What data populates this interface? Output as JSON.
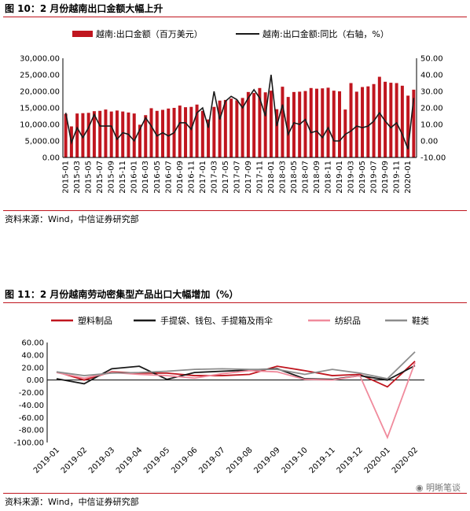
{
  "figures": [
    {
      "title": "图 10：2 月份越南出口金额大幅上升",
      "source": "资料来源：Wind，中信证券研究部"
    },
    {
      "title": "图 11：2 月份越南劳动密集型产品出口大幅增加（%）",
      "source": "资料来源：Wind，中信证券研究部"
    }
  ],
  "watermark": "明晰笔谈",
  "chart_data": [
    {
      "type": "bar",
      "title": "",
      "x_tick_labels": [
        "2015-01",
        "2015-03",
        "2015-05",
        "2015-07",
        "2015-09",
        "2015-11",
        "2016-01",
        "2016-03",
        "2016-05",
        "2016-07",
        "2016-09",
        "2016-11",
        "2017-01",
        "2017-03",
        "2017-05",
        "2017-07",
        "2017-09",
        "2017-11",
        "2018-01",
        "2018-03",
        "2018-05",
        "2018-07",
        "2018-09",
        "2018-11",
        "2019-01",
        "2019-03",
        "2019-05",
        "2019-07",
        "2019-09",
        "2019-11",
        "2020-01"
      ],
      "months": [
        "2015-01",
        "2015-02",
        "2015-03",
        "2015-04",
        "2015-05",
        "2015-06",
        "2015-07",
        "2015-08",
        "2015-09",
        "2015-10",
        "2015-11",
        "2015-12",
        "2016-01",
        "2016-02",
        "2016-03",
        "2016-04",
        "2016-05",
        "2016-06",
        "2016-07",
        "2016-08",
        "2016-09",
        "2016-10",
        "2016-11",
        "2016-12",
        "2017-01",
        "2017-02",
        "2017-03",
        "2017-04",
        "2017-05",
        "2017-06",
        "2017-07",
        "2017-08",
        "2017-09",
        "2017-10",
        "2017-11",
        "2017-12",
        "2018-01",
        "2018-02",
        "2018-03",
        "2018-04",
        "2018-05",
        "2018-06",
        "2018-07",
        "2018-08",
        "2018-09",
        "2018-10",
        "2018-11",
        "2018-12",
        "2019-01",
        "2019-02",
        "2019-03",
        "2019-04",
        "2019-05",
        "2019-06",
        "2019-07",
        "2019-08",
        "2019-09",
        "2019-10",
        "2019-11",
        "2019-12",
        "2020-01",
        "2020-02"
      ],
      "y_left_lim": [
        0,
        30000
      ],
      "y_left_ticks": [
        "0.00",
        "5,000.00",
        "10,000.00",
        "15,000.00",
        "20,000.00",
        "25,000.00",
        "30,000.00"
      ],
      "y_right_lim": [
        -10,
        50
      ],
      "y_right_ticks": [
        "-10.00",
        "0.00",
        "10.00",
        "20.00",
        "30.00",
        "40.00",
        "50.00"
      ],
      "legend_position": "top",
      "colors": {
        "bar": "#c0161f",
        "line": "#1a1a1a"
      },
      "series": [
        {
          "name": "越南:出口金额（百万美元）",
          "kind": "bar",
          "axis": "left",
          "values": [
            13200,
            9400,
            13300,
            13400,
            13500,
            14000,
            14100,
            14500,
            13900,
            14200,
            13900,
            13600,
            13300,
            9900,
            12800,
            14900,
            14100,
            14400,
            14800,
            15000,
            15700,
            15200,
            15300,
            16000,
            14100,
            11500,
            15300,
            17200,
            17400,
            17800,
            17300,
            18000,
            19800,
            19500,
            21000,
            19700,
            20200,
            14600,
            21400,
            18300,
            19800,
            19900,
            20100,
            21000,
            20800,
            20900,
            21100,
            20200,
            20000,
            14500,
            22500,
            19900,
            21300,
            21500,
            22200,
            24400,
            22900,
            22600,
            22500,
            21700,
            18700,
            20500
          ]
        },
        {
          "name": "越南:出口金额:同比（右轴，%）",
          "kind": "line",
          "axis": "right",
          "values": [
            17,
            -1,
            8,
            2,
            8,
            16,
            9,
            9,
            9,
            1,
            5,
            4,
            0,
            7,
            14,
            9,
            3,
            5,
            3,
            5,
            11,
            11,
            7,
            17,
            20,
            8,
            30,
            13,
            24,
            27,
            25,
            20,
            26,
            31,
            26,
            15,
            40,
            9,
            22,
            4,
            11,
            10,
            13,
            5,
            6,
            2,
            8,
            0,
            0,
            4,
            6,
            9,
            8,
            9,
            12,
            17,
            12,
            8,
            11,
            4,
            -5,
            26
          ]
        }
      ]
    },
    {
      "type": "line",
      "title": "",
      "categories": [
        "2019-01",
        "2019-02",
        "2019-03",
        "2019-04",
        "2019-05",
        "2019-06",
        "2019-07",
        "2019-08",
        "2019-09",
        "2019-10",
        "2019-11",
        "2019-12",
        "2020-01",
        "2020-02"
      ],
      "ylim": [
        -100,
        60
      ],
      "y_ticks": [
        "-100.00",
        "-80.00",
        "-60.00",
        "-40.00",
        "-20.00",
        "0.00",
        "20.00",
        "40.00",
        "60.00"
      ],
      "legend_position": "top",
      "series": [
        {
          "name": "塑料制品",
          "color": "#c0161f",
          "values": [
            13,
            0,
            13,
            11,
            11,
            7,
            7,
            9,
            22,
            15,
            7,
            9,
            -11,
            30
          ]
        },
        {
          "name": "手提袋、钱包、手提箱及雨伞",
          "color": "#1a1a1a",
          "values": [
            2,
            -6,
            18,
            22,
            1,
            12,
            14,
            16,
            18,
            2,
            1,
            7,
            0,
            23
          ]
        },
        {
          "name": "纺织品",
          "color": "#f08a9c",
          "values": [
            12,
            3,
            12,
            9,
            7,
            3,
            10,
            15,
            13,
            1,
            0,
            7,
            -92,
            28
          ]
        },
        {
          "name": "鞋类",
          "color": "#8c8c8c",
          "values": [
            13,
            7,
            11,
            12,
            14,
            17,
            18,
            17,
            17,
            9,
            17,
            11,
            2,
            45
          ]
        }
      ]
    }
  ]
}
